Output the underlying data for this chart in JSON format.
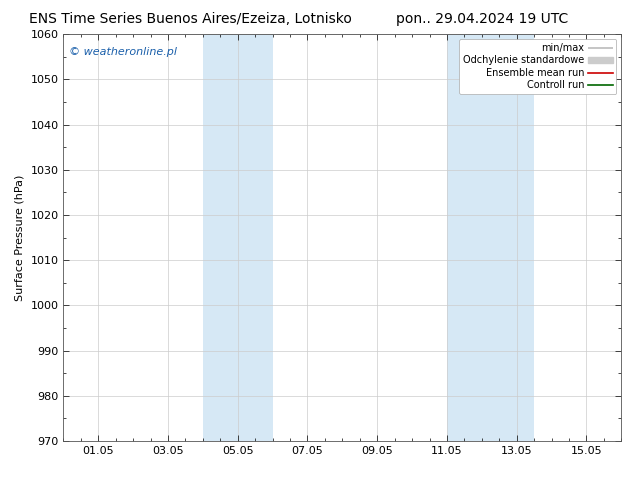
{
  "title_left": "ENS Time Series Buenos Aires/Ezeiza, Lotnisko",
  "title_right": "pon.. 29.04.2024 19 UTC",
  "ylabel": "Surface Pressure (hPa)",
  "ylim": [
    970,
    1060
  ],
  "yticks": [
    970,
    980,
    990,
    1000,
    1010,
    1020,
    1030,
    1040,
    1050,
    1060
  ],
  "xtick_labels": [
    "01.05",
    "03.05",
    "05.05",
    "07.05",
    "09.05",
    "11.05",
    "13.05",
    "15.05"
  ],
  "xtick_positions": [
    1,
    3,
    5,
    7,
    9,
    11,
    13,
    15
  ],
  "xlim": [
    0,
    16
  ],
  "shaded_regions": [
    {
      "start": 4.0,
      "end": 6.0,
      "color": "#d6e8f5"
    },
    {
      "start": 11.0,
      "end": 13.5,
      "color": "#d6e8f5"
    }
  ],
  "watermark_text": "© weatheronline.pl",
  "watermark_color": "#1a5faa",
  "legend_items": [
    {
      "label": "min/max",
      "color": "#bbbbbb",
      "lw": 1.2
    },
    {
      "label": "Odchylenie standardowe",
      "color": "#cccccc",
      "lw": 5
    },
    {
      "label": "Ensemble mean run",
      "color": "#cc0000",
      "lw": 1.2
    },
    {
      "label": "Controll run",
      "color": "#006600",
      "lw": 1.2
    }
  ],
  "background_color": "#ffffff",
  "plot_bg_color": "#ffffff",
  "grid_color": "#cccccc",
  "title_fontsize": 10,
  "tick_fontsize": 8,
  "ylabel_fontsize": 8,
  "watermark_fontsize": 8
}
